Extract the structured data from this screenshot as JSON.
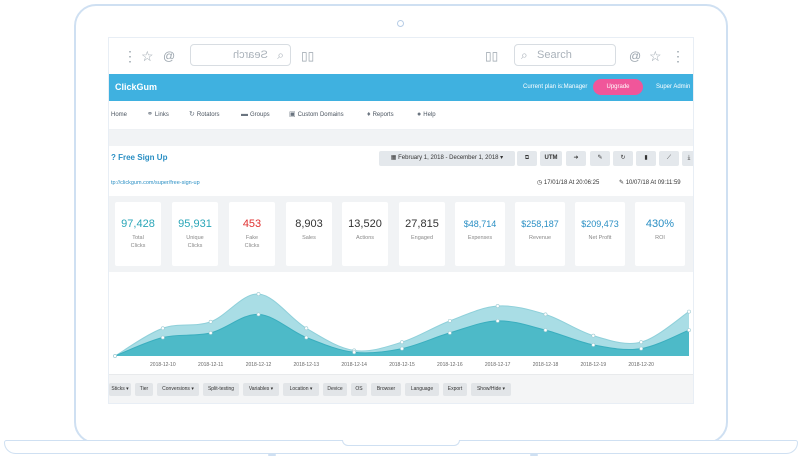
{
  "browser": {
    "search_placeholder": "Search",
    "search_placeholder_mirrored": "Search"
  },
  "app": {
    "brand": "ClickGum",
    "plan_text": "Current plan is:Manager",
    "upgrade_label": "Upgrade",
    "admin_label": "Super Admin"
  },
  "nav": [
    {
      "label": "Home",
      "icon": ""
    },
    {
      "label": "Links",
      "icon": "link-icon"
    },
    {
      "label": "Rotators",
      "icon": "refresh-icon"
    },
    {
      "label": "Groups",
      "icon": "folder-icon"
    },
    {
      "label": "Custom Domains",
      "icon": "domain-icon"
    },
    {
      "label": "Reports",
      "icon": "pin-icon"
    },
    {
      "label": "Help",
      "icon": "help-icon"
    }
  ],
  "page": {
    "title": "Free Sign Up",
    "date_range": "February 1, 2018 - December 1, 2018",
    "url": "tp://clickgum.com/super/free-sign-up",
    "created": "17/01/18 At 20:06:25",
    "updated": "10/07/18 At 09:11:59"
  },
  "toolbar": {
    "copy_icon": "copy-icon",
    "utm_label": "UTM",
    "arrow_icon": "arrow-right-icon",
    "edit_icon": "pencil-icon",
    "reset_icon": "refresh-icon",
    "delete_icon": "trash-icon",
    "chart_icon": "chart-icon",
    "download_icon": "download-icon"
  },
  "stats": [
    {
      "value": "97,428",
      "label1": "Total",
      "label2": "Clicks",
      "color": "#2aa6b8"
    },
    {
      "value": "95,931",
      "label1": "Unique",
      "label2": "Clicks",
      "color": "#2aa6b8"
    },
    {
      "value": "453",
      "label1": "Fake",
      "label2": "Clicks",
      "color": "#e03131"
    },
    {
      "value": "8,903",
      "label1": "Sales",
      "label2": "",
      "color": "#333333"
    },
    {
      "value": "13,520",
      "label1": "Actions",
      "label2": "",
      "color": "#333333"
    },
    {
      "value": "27,815",
      "label1": "Engaged",
      "label2": "",
      "color": "#333333"
    },
    {
      "value": "$48,714",
      "label1": "Expenses",
      "label2": "",
      "color": "#2a8fc4"
    },
    {
      "value": "$258,187",
      "label1": "Revenue",
      "label2": "",
      "color": "#2a8fc4"
    },
    {
      "value": "$209,473",
      "label1": "Net Profit",
      "label2": "",
      "color": "#2a8fc4"
    },
    {
      "value": "430%",
      "label1": "ROI",
      "label2": "",
      "color": "#2a8fc4"
    }
  ],
  "chart_data": {
    "type": "area",
    "categories": [
      "2018-12-10",
      "2018-12-11",
      "2018-12-12",
      "2018-12-13",
      "2018-12-14",
      "2018-12-15",
      "2018-12-16",
      "2018-12-17",
      "2018-12-18",
      "2018-12-19",
      "2018-12-20"
    ],
    "x": [
      "2018-12-09",
      "2018-12-10",
      "2018-12-11",
      "2018-12-12",
      "2018-12-13",
      "2018-12-14",
      "2018-12-15",
      "2018-12-16",
      "2018-12-17",
      "2018-12-18",
      "2018-12-19",
      "2018-12-20",
      "2018-12-21"
    ],
    "series": [
      {
        "values": [
          0,
          30,
          37,
          67,
          30,
          6,
          15,
          38,
          54,
          45,
          22,
          15,
          48
        ],
        "color": "#a9dde5"
      },
      {
        "values": [
          0,
          20,
          25,
          45,
          20,
          4,
          8,
          25,
          38,
          28,
          12,
          8,
          28
        ],
        "color": "#4dbac8"
      }
    ],
    "ylim": [
      0,
      80
    ],
    "grid": false,
    "legend": "none"
  },
  "bottom": [
    "Sticks",
    "Tier",
    "Conversions",
    "Split-testing",
    "Variables",
    "Location",
    "Device",
    "OS",
    "Browser",
    "Language",
    "Export",
    "Show/Hide"
  ]
}
